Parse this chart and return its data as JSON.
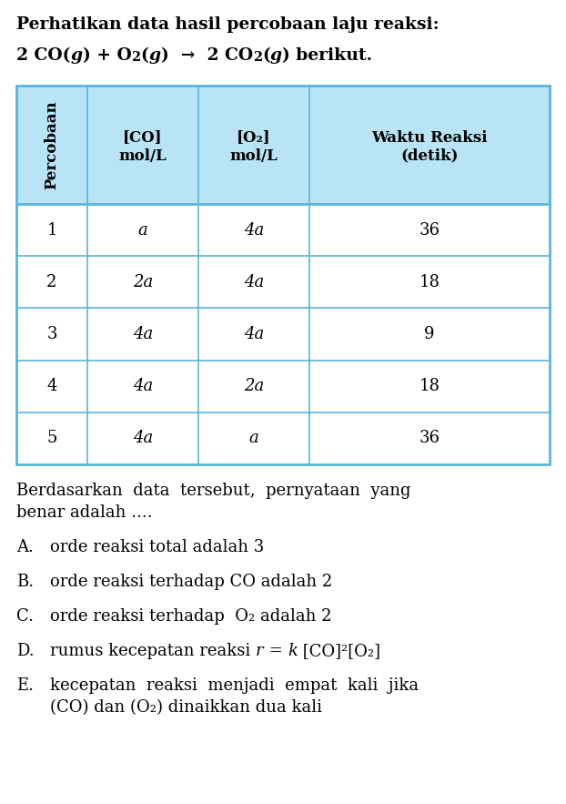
{
  "title_line1": "Perhatikan data hasil percobaan laju reaksi:",
  "table_bg_header": "#b8e4f5",
  "table_bg_rows": "#ffffff",
  "table_border_color": "#5ab4dc",
  "bg_color": "#ffffff",
  "text_color": "#000000",
  "font_size_title": 13.5,
  "font_size_table_header": 12,
  "font_size_table_data": 13,
  "font_size_body": 13,
  "table_data": [
    [
      "1",
      "a",
      "4a",
      "36"
    ],
    [
      "2",
      "2a",
      "4a",
      "18"
    ],
    [
      "3",
      "4a",
      "4a",
      "9"
    ],
    [
      "4",
      "4a",
      "2a",
      "18"
    ],
    [
      "5",
      "4a",
      "a",
      "36"
    ]
  ]
}
